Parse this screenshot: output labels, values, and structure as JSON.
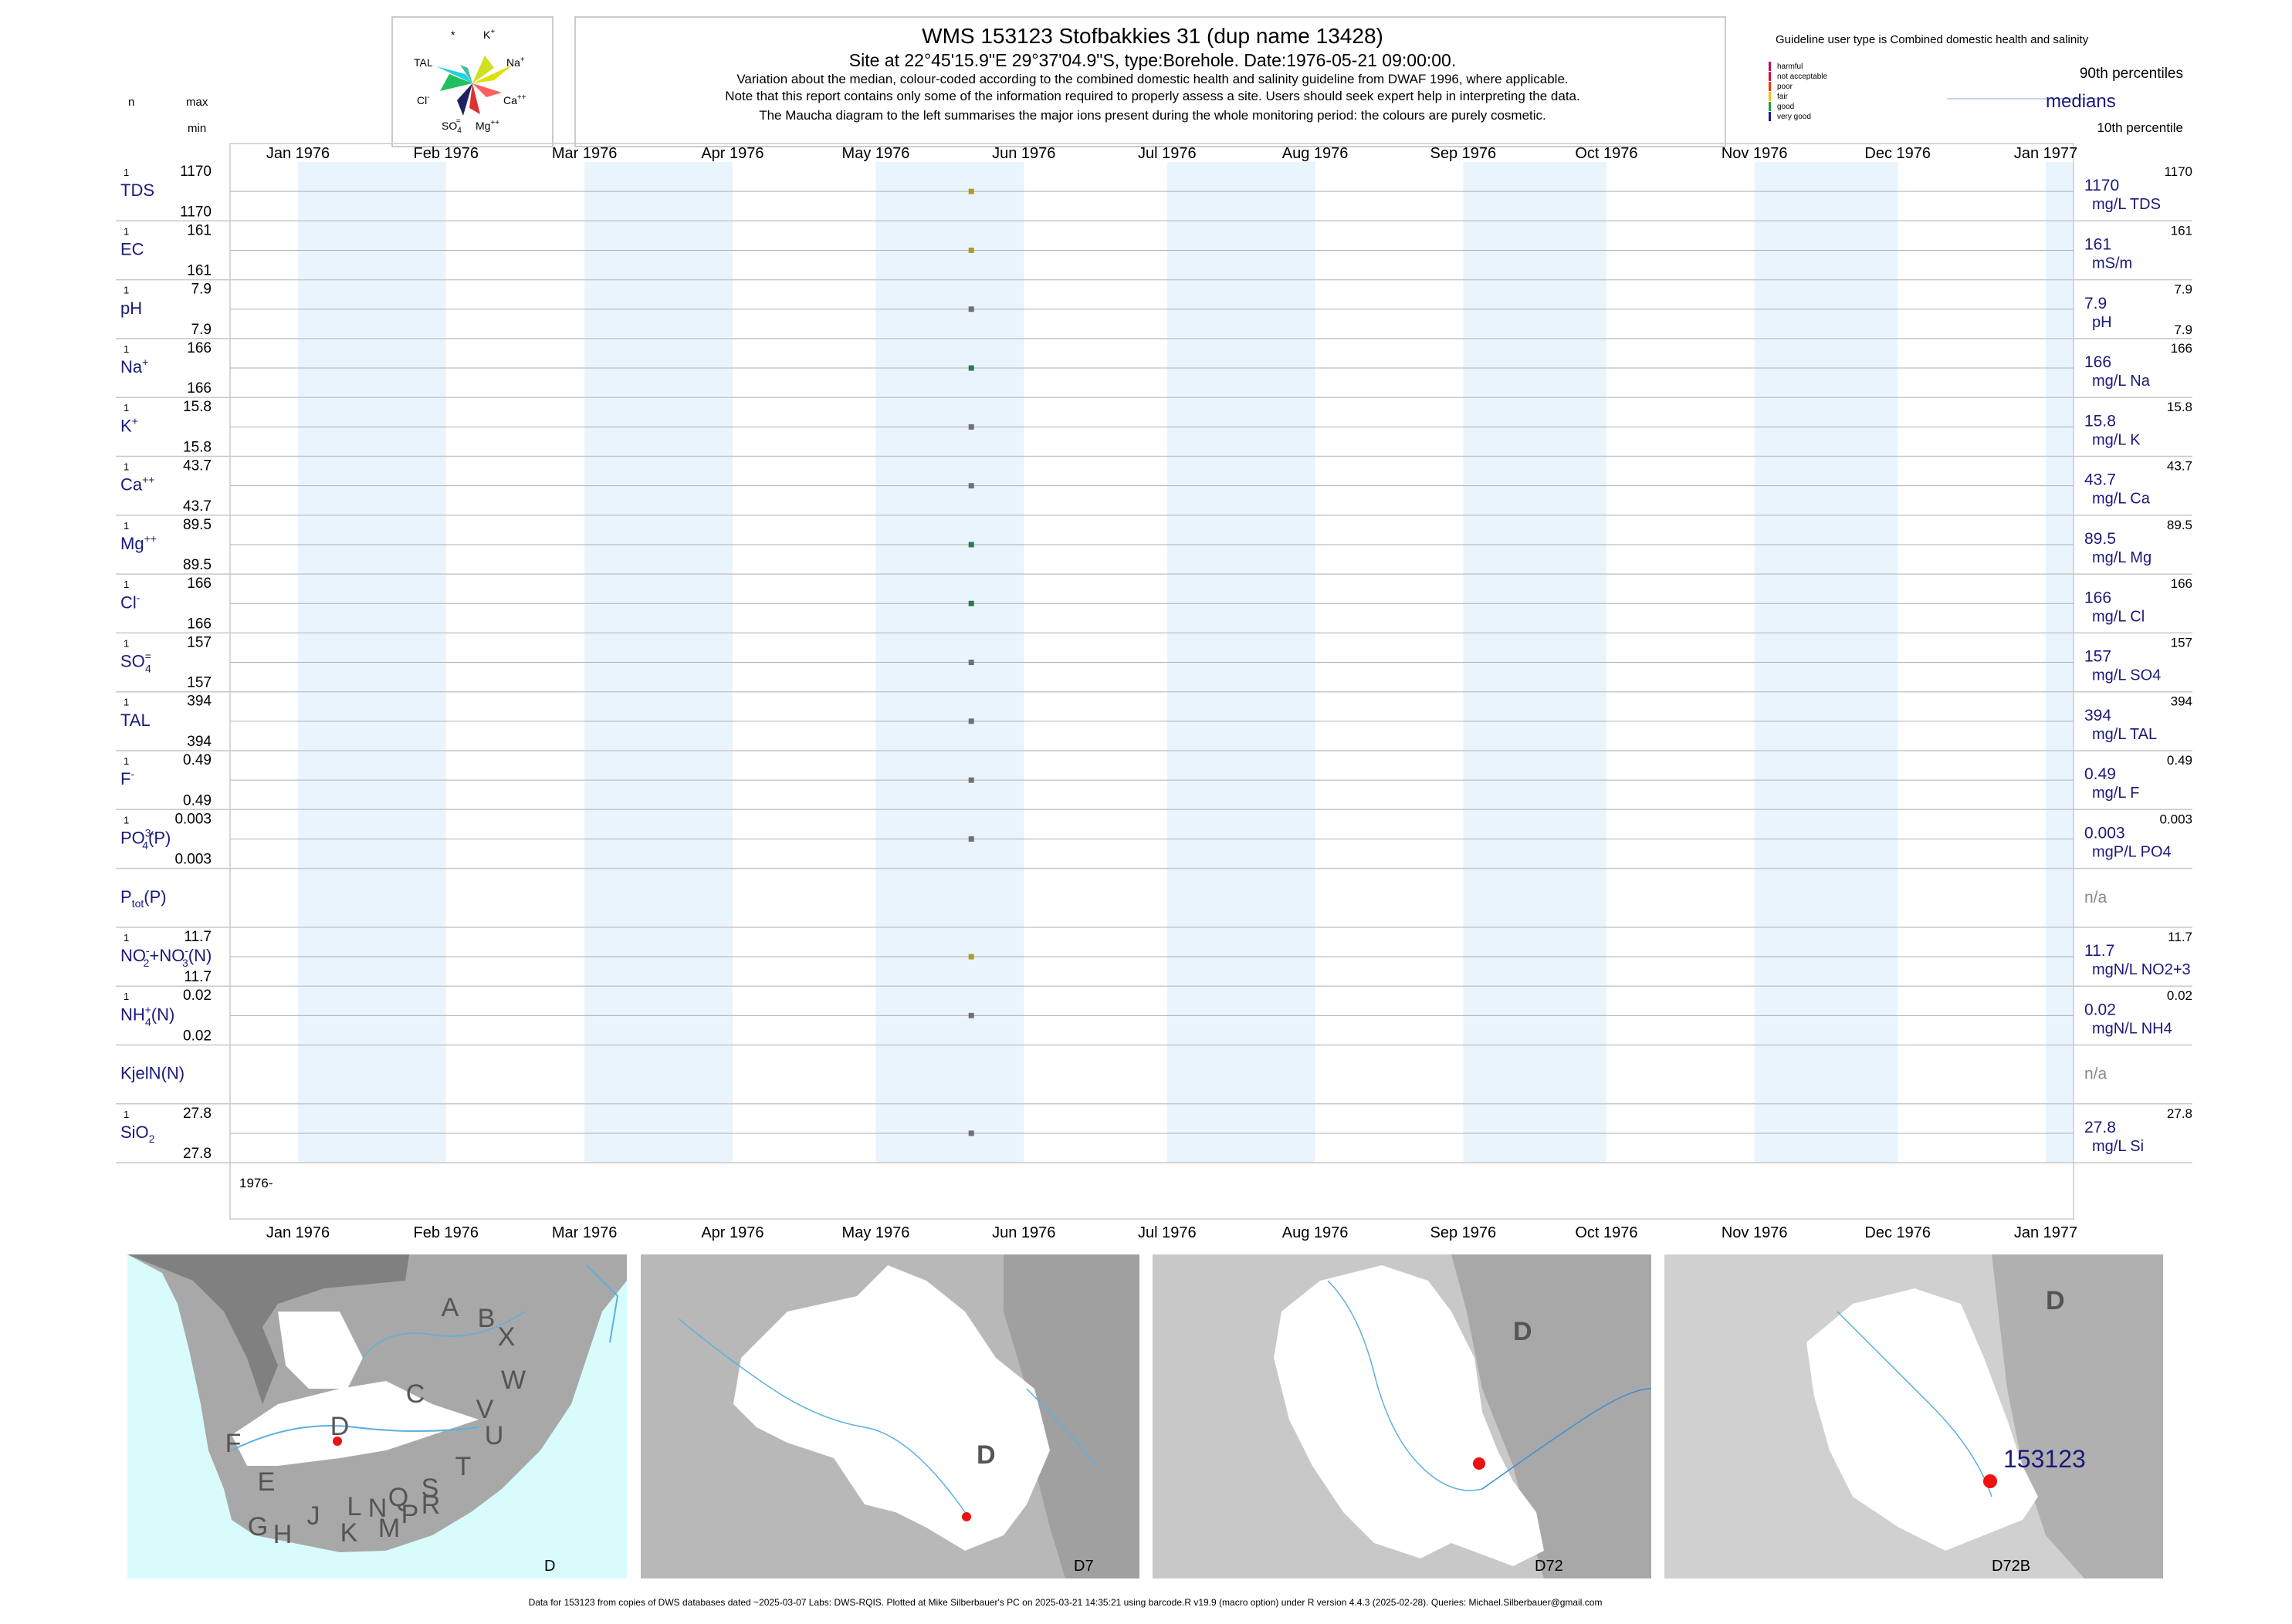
{
  "header": {
    "title": "WMS 153123  Stofbakkies 31 (dup name 13428)",
    "subtitle": "Site at 22°45'15.9\"E 29°37'04.9\"S, type:Borehole. Date:1976-05-21 09:00:00.",
    "notes": [
      "Variation about the median,  colour-coded according to the combined domestic health and salinity guideline from DWAF 1996, where applicable.",
      "Note that this report contains only some of the information required to properly assess a site. Users should seek expert help in interpreting the data.",
      "The Maucha diagram to the left summarises the major ions present during the whole monitoring period: the colours are purely cosmetic."
    ]
  },
  "left_header": {
    "n": "n",
    "max": "max",
    "min": "min"
  },
  "maucha": {
    "labels": [
      "*",
      "K+",
      "TAL",
      "Na+",
      "Cl-",
      "Ca++",
      "SO4=",
      "Mg++"
    ]
  },
  "legend": {
    "title": "Guideline user type is Combined domestic health and salinity",
    "categories": [
      {
        "label": "harmful",
        "color": "#c0006a"
      },
      {
        "label": "not acceptable",
        "color": "#e0003a"
      },
      {
        "label": "poor",
        "color": "#ff3000"
      },
      {
        "label": "fair",
        "color": "#f0c000"
      },
      {
        "label": "good",
        "color": "#20a040"
      },
      {
        "label": "very good",
        "color": "#1020a0"
      }
    ],
    "p90": "90th percentiles",
    "median": "medians",
    "p10": "10th percentile"
  },
  "chart_data": {
    "type": "scatter",
    "x_range": [
      "1976-01-01",
      "1977-01-01"
    ],
    "x_ticks": [
      "Jan 1976",
      "Feb 1976",
      "Mar 1976",
      "Apr 1976",
      "May 1976",
      "Jun 1976",
      "Jul 1976",
      "Aug 1976",
      "Sep 1976",
      "Oct 1976",
      "Nov 1976",
      "Dec 1976",
      "Jan 1977"
    ],
    "year_label": "1976-",
    "sample_date": "1976-05-21",
    "series": [
      {
        "n": "1",
        "name": "TDS",
        "sup": "",
        "sub": "",
        "max": "1170",
        "min": "1170",
        "value": 1170,
        "unit": "mg/L TDS",
        "median": "1170",
        "p90": "1170",
        "p10": "",
        "color": "#b09a20"
      },
      {
        "n": "1",
        "name": "EC",
        "sup": "",
        "sub": "",
        "max": "161",
        "min": "161",
        "value": 161,
        "unit": "mS/m",
        "median": "161",
        "p90": "161",
        "p10": "",
        "color": "#b09a20"
      },
      {
        "n": "1",
        "name": "pH",
        "sup": "",
        "sub": "",
        "max": "7.9",
        "min": "7.9",
        "value": 7.9,
        "unit": "pH",
        "median": "7.9",
        "p90": "7.9",
        "p10": "7.9",
        "color": "#707070"
      },
      {
        "n": "1",
        "name": "Na",
        "sup": "+",
        "sub": "",
        "max": "166",
        "min": "166",
        "value": 166,
        "unit": "mg/L Na",
        "median": "166",
        "p90": "166",
        "p10": "",
        "color": "#2a7a50"
      },
      {
        "n": "1",
        "name": "K",
        "sup": "+",
        "sub": "",
        "max": "15.8",
        "min": "15.8",
        "value": 15.8,
        "unit": "mg/L K",
        "median": "15.8",
        "p90": "15.8",
        "p10": "",
        "color": "#707070"
      },
      {
        "n": "1",
        "name": "Ca",
        "sup": "++",
        "sub": "",
        "max": "43.7",
        "min": "43.7",
        "value": 43.7,
        "unit": "mg/L Ca",
        "median": "43.7",
        "p90": "43.7",
        "p10": "",
        "color": "#707070"
      },
      {
        "n": "1",
        "name": "Mg",
        "sup": "++",
        "sub": "",
        "max": "89.5",
        "min": "89.5",
        "value": 89.5,
        "unit": "mg/L Mg",
        "median": "89.5",
        "p90": "89.5",
        "p10": "",
        "color": "#2a7a50"
      },
      {
        "n": "1",
        "name": "Cl",
        "sup": "-",
        "sub": "",
        "max": "166",
        "min": "166",
        "value": 166,
        "unit": "mg/L Cl",
        "median": "166",
        "p90": "166",
        "p10": "",
        "color": "#2a7a50"
      },
      {
        "n": "1",
        "name": "SO",
        "sup": "=",
        "sub": "4",
        "max": "157",
        "min": "157",
        "value": 157,
        "unit": "mg/L SO4",
        "median": "157",
        "p90": "157",
        "p10": "",
        "color": "#707070"
      },
      {
        "n": "1",
        "name": "TAL",
        "sup": "",
        "sub": "",
        "max": "394",
        "min": "394",
        "value": 394,
        "unit": "mg/L TAL",
        "median": "394",
        "p90": "394",
        "p10": "",
        "color": "#707070"
      },
      {
        "n": "1",
        "name": "F",
        "sup": "-",
        "sub": "",
        "max": "0.49",
        "min": "0.49",
        "value": 0.49,
        "unit": "mg/L F",
        "median": "0.49",
        "p90": "0.49",
        "p10": "",
        "color": "#707070"
      },
      {
        "n": "1",
        "name": "PO",
        "sup": "3-",
        "sub": "4",
        "suffix": "(P)",
        "max": "0.003",
        "min": "0.003",
        "value": 0.003,
        "unit": "mgP/L PO4",
        "median": "0.003",
        "p90": "0.003",
        "p10": "",
        "color": "#707070"
      },
      {
        "n": "",
        "name": "P",
        "sup": "",
        "sub": "tot",
        "suffix": "(P)",
        "max": "",
        "min": "",
        "value": null,
        "unit": "",
        "median": "n/a",
        "p90": "",
        "p10": "",
        "color": "#707070"
      },
      {
        "n": "1",
        "name": "NO",
        "sup": "-",
        "sub": "2",
        "suffix": "+NO",
        "sup2": "-",
        "sub2": "3",
        "suffix2": "(N)",
        "max": "11.7",
        "min": "11.7",
        "value": 11.7,
        "unit": "mgN/L NO2+3",
        "median": "11.7",
        "p90": "11.7",
        "p10": "",
        "color": "#b09a20"
      },
      {
        "n": "1",
        "name": "NH",
        "sup": "+",
        "sub": "4",
        "suffix": "(N)",
        "max": "0.02",
        "min": "0.02",
        "value": 0.02,
        "unit": "mgN/L NH4",
        "median": "0.02",
        "p90": "0.02",
        "p10": "",
        "color": "#707070"
      },
      {
        "n": "",
        "name": "KjelN(N)",
        "sup": "",
        "sub": "",
        "max": "",
        "min": "",
        "value": null,
        "unit": "",
        "median": "n/a",
        "p90": "",
        "p10": "",
        "color": "#707070"
      },
      {
        "n": "1",
        "name": "SiO",
        "sup": "",
        "sub": "2",
        "max": "27.8",
        "min": "27.8",
        "value": 27.8,
        "unit": "mg/L Si",
        "median": "27.8",
        "p90": "27.8",
        "p10": "",
        "color": "#707070"
      }
    ]
  },
  "maps": {
    "panel1_letters": [
      "A",
      "B",
      "X",
      "C",
      "W",
      "D",
      "V",
      "U",
      "T",
      "F",
      "E",
      "S",
      "R",
      "Q",
      "P",
      "N",
      "L",
      "M",
      "K",
      "J",
      "G",
      "H"
    ],
    "captions": [
      "D",
      "D7",
      "D72",
      "D72B"
    ],
    "big_letters": [
      "D",
      "D",
      "D"
    ],
    "site_label": "153123",
    "marker_color": "#ee1111"
  },
  "footer": "Data for 153123 from copies of DWS databases dated ~2025-03-07 Labs: DWS-RQIS. Plotted at Mike Silberbauer's PC on 2025-03-21 14:35:21 using barcode.R v19.9 (macro option) under R version 4.4.3 (2025-02-28). Queries: Michael.Silberbauer@gmail.com"
}
